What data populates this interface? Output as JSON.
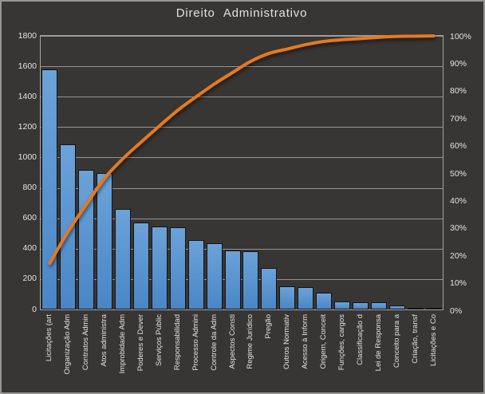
{
  "title": "Direito Administrativo",
  "colors": {
    "background": "#383634",
    "frame_border": "#979593",
    "gridline": "#A7A5A2",
    "axis_text": "#E4E2E0",
    "bar_fill_top": "#6CA2D8",
    "bar_fill_bottom": "#4A86C6",
    "bar_border": "#141414",
    "line": "#E8791F"
  },
  "chart_data": {
    "type": "bar",
    "subtype": "pareto-combo-bar-and-cumulative-line",
    "title": "Direito Administrativo",
    "categories": [
      "Licitações (art",
      "Organização Adm",
      "Contratos Admin",
      "Atos administra",
      "Improbidade Adm",
      "Poderes e Dever",
      "Serviços Públic",
      "Responsabilidad",
      "Processo Admini",
      "Controle da Adm",
      "Aspectos Consti",
      "Regime Jurídico",
      "Pregão",
      "Outros Normativ",
      "Acesso à Inform",
      "Origem, Conceit",
      "Funções, cargos",
      "Classificação d",
      "Lei de Responsa",
      "Conceito para a",
      "Criação, transf",
      "Licitações e Co"
    ],
    "series": [
      {
        "role": "frequency-bars",
        "type": "bar",
        "axis": "left",
        "values": [
          1580,
          1085,
          920,
          900,
          660,
          570,
          545,
          540,
          455,
          435,
          390,
          385,
          275,
          150,
          145,
          110,
          55,
          45,
          45,
          25,
          10,
          10
        ]
      },
      {
        "role": "cumulative-percent-line",
        "type": "line",
        "axis": "right",
        "values": [
          16.9,
          28.5,
          38.4,
          48.0,
          55.1,
          61.2,
          67.1,
          72.8,
          77.7,
          82.4,
          86.6,
          90.7,
          93.6,
          95.2,
          96.8,
          98.0,
          98.6,
          99.0,
          99.5,
          99.8,
          99.9,
          100.0
        ]
      }
    ],
    "y_left": {
      "min": 0,
      "max": 1800,
      "step": 200,
      "tick_labels": [
        "1800",
        "1600",
        "1400",
        "1200",
        "1000",
        "800",
        "600",
        "400",
        "200",
        "0"
      ]
    },
    "y_right": {
      "min": 0,
      "max": 100,
      "step": 10,
      "tick_labels": [
        "100%",
        "90%",
        "80%",
        "70%",
        "60%",
        "50%",
        "40%",
        "30%",
        "20%",
        "10%",
        "0%"
      ]
    },
    "grid": "horizontal",
    "legend": "none"
  }
}
